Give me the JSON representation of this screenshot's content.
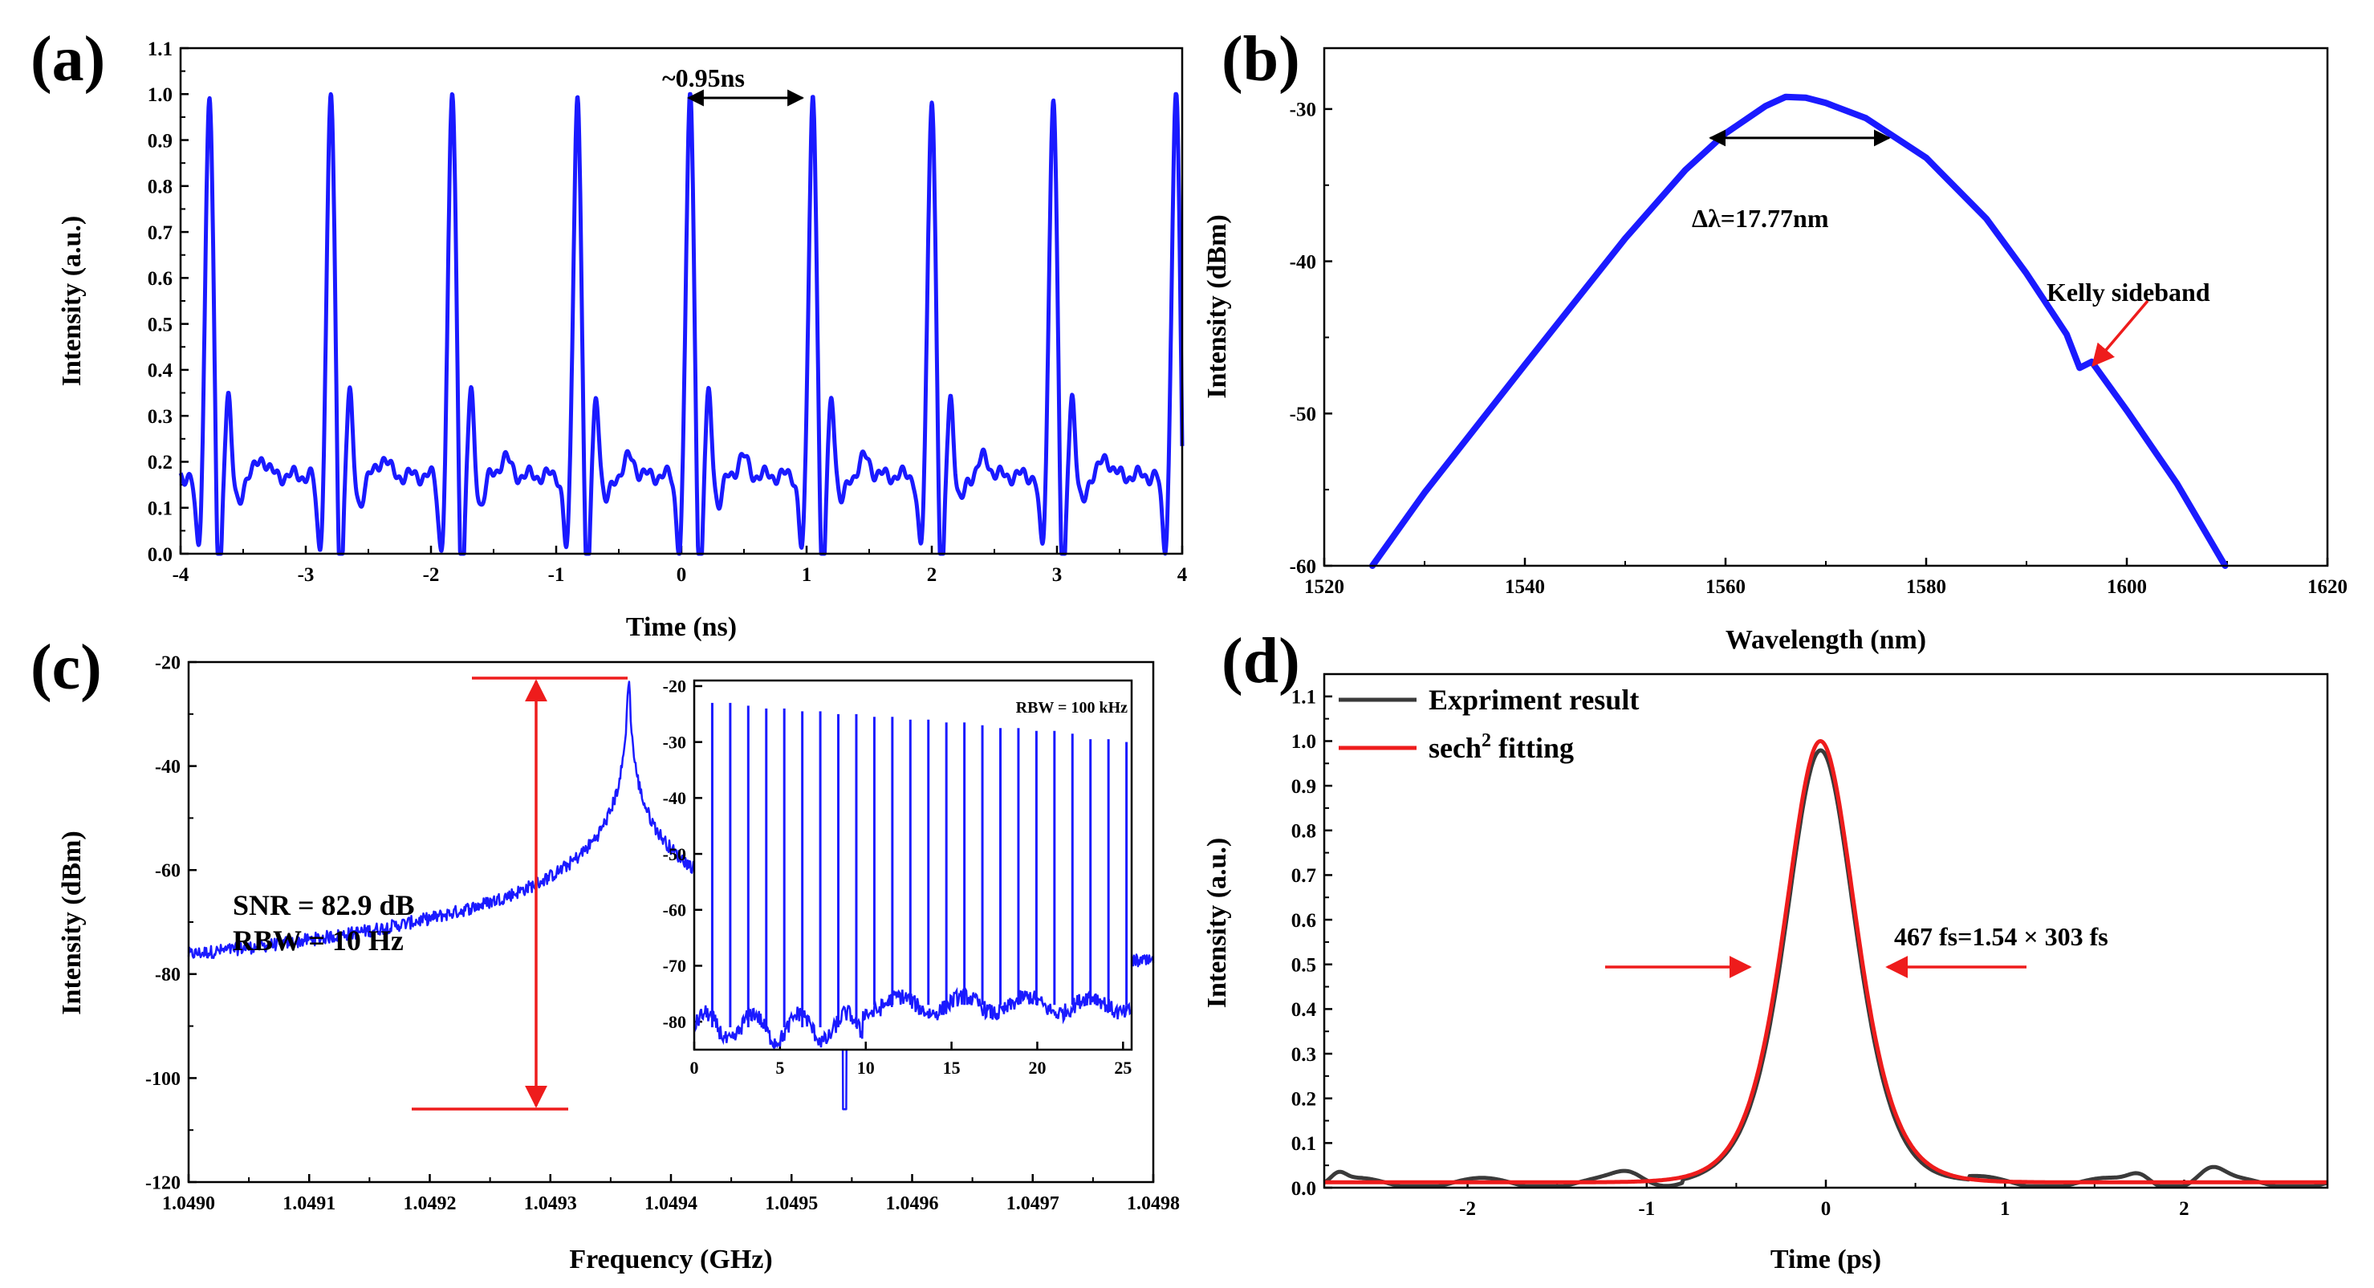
{
  "colors": {
    "blue": "#1a1aff",
    "red": "#ee1c1c",
    "gray": "#3a3a3a",
    "black": "#000000"
  },
  "chart_data": [
    {
      "panel": "(a)",
      "type": "line",
      "xlabel": "Time (ns)",
      "ylabel": "Intensity (a.u.)",
      "xlim": [
        -4,
        4
      ],
      "ylim": [
        0,
        1.1
      ],
      "xticks": [
        "-4",
        "-3",
        "-2",
        "-1",
        "0",
        "1",
        "2",
        "3",
        "4"
      ],
      "yticks": [
        "0.0",
        "0.1",
        "0.2",
        "0.3",
        "0.4",
        "0.5",
        "0.6",
        "0.7",
        "0.8",
        "0.9",
        "1.0",
        "1.1"
      ],
      "pulse_period_ns": 0.95,
      "pulse_peaks_ns": [
        -3.77,
        -2.8,
        -1.83,
        -0.83,
        0.07,
        1.05,
        2.0,
        2.97,
        3.95
      ],
      "annotation": "~0.95ns",
      "series": [
        {
          "name": "pulse train",
          "color": "#1a1aff",
          "peak": 1.0,
          "baseline": 0.18,
          "secondary_peak": 0.35,
          "dip": 0.0
        }
      ]
    },
    {
      "panel": "(b)",
      "type": "line",
      "xlabel": "Wavelength (nm)",
      "ylabel": "Intensity (dBm)",
      "xlim": [
        1520,
        1620
      ],
      "ylim": [
        -60,
        -26
      ],
      "xticks": [
        "1520",
        "1540",
        "1560",
        "1580",
        "1600",
        "1620"
      ],
      "yticks": [
        "-60",
        "-50",
        "-40",
        "-30"
      ],
      "x": [
        1524.8,
        1530,
        1540,
        1550,
        1556,
        1560,
        1564,
        1566,
        1568,
        1570,
        1574,
        1580,
        1586,
        1590,
        1594,
        1595.3,
        1596.5,
        1600,
        1605,
        1609.8
      ],
      "y": [
        -60,
        -55.2,
        -46.8,
        -38.5,
        -34.0,
        -31.6,
        -29.8,
        -29.2,
        -29.25,
        -29.6,
        -30.6,
        -33.2,
        -37.2,
        -40.8,
        -44.8,
        -47.0,
        -46.6,
        -49.8,
        -54.6,
        -60
      ],
      "fwhm_annotation": "Δλ=17.77nm",
      "fwhm_range_nm": [
        1558.5,
        1576.3
      ],
      "sideband_label": "Kelly sideband",
      "sideband_nm": 1595.3
    },
    {
      "panel": "(c)",
      "type": "line",
      "xlabel": "Frequency (GHz)",
      "ylabel": "Intensity (dBm)",
      "xlim": [
        1.049,
        1.0498
      ],
      "ylim": [
        -120,
        -20
      ],
      "xticks": [
        "1.0490",
        "1.0491",
        "1.0492",
        "1.0493",
        "1.0494",
        "1.0495",
        "1.0496",
        "1.0497",
        "1.0498"
      ],
      "yticks": [
        "-120",
        "-100",
        "-80",
        "-60",
        "-40",
        "-20"
      ],
      "peak_freq_ghz": 1.049365,
      "peak_dbm": -23,
      "noise_floor_dbm": -106,
      "side_bumps_ghz": [
        1.04913,
        1.04959
      ],
      "annotations": [
        "SNR = 82.9 dB",
        "RBW = 10 Hz"
      ],
      "inset": {
        "xlim": [
          0,
          25.5
        ],
        "ylim": [
          -85,
          -19
        ],
        "xticks": [
          "0",
          "5",
          "10",
          "15",
          "20",
          "25"
        ],
        "yticks": [
          "-80",
          "-70",
          "-60",
          "-50",
          "-40",
          "-30",
          "-20"
        ],
        "label": "RBW = 100 kHz",
        "harmonics_ghz": [
          1.05,
          2.1,
          3.15,
          4.2,
          5.25,
          6.3,
          7.35,
          8.4,
          9.45,
          10.5,
          11.55,
          12.6,
          13.65,
          14.7,
          15.75,
          16.8,
          17.85,
          18.9,
          19.95,
          21.0,
          22.05,
          23.1,
          24.15,
          25.2
        ],
        "harmonic_peaks_dbm": [
          -23,
          -23,
          -23.5,
          -24,
          -24,
          -24.5,
          -24.5,
          -25,
          -25,
          -25.5,
          -25.5,
          -26,
          -26,
          -26.5,
          -26.5,
          -27,
          -27.5,
          -27.5,
          -28,
          -28,
          -28.5,
          -29.5,
          -29.5,
          -30
        ],
        "floor_dbm": -80
      }
    },
    {
      "panel": "(d)",
      "type": "line",
      "xlabel": "Time (ps)",
      "ylabel": "Intensity (a.u.)",
      "xlim": [
        -2.8,
        2.8
      ],
      "ylim": [
        0,
        1.15
      ],
      "xticks": [
        "-2",
        "-1",
        "0",
        "1",
        "2"
      ],
      "yticks": [
        "0.0",
        "0.1",
        "0.2",
        "0.3",
        "0.4",
        "0.5",
        "0.6",
        "0.7",
        "0.8",
        "0.9",
        "1.0",
        "1.1"
      ],
      "series": [
        {
          "name": "Expriment result",
          "color": "#3a3a3a",
          "peak": 0.98,
          "center_ps": -0.03,
          "fwhm_ps": 0.467
        },
        {
          "name": "sech² fitting",
          "color": "#ee1c1c",
          "peak": 1.0,
          "center_ps": -0.03,
          "fwhm_ps": 0.467
        }
      ],
      "annotation": "467 fs=1.54 × 303 fs"
    }
  ],
  "panels": {
    "a": {
      "label": "(a)",
      "xlabel": "Time (ns)",
      "ylabel": "Intensity (a.u.)",
      "annotation": "~0.95ns"
    },
    "b": {
      "label": "(b)",
      "xlabel": "Wavelength (nm)",
      "ylabel": "Intensity (dBm)",
      "annotation": "Δλ=17.77nm",
      "sideband": "Kelly sideband"
    },
    "c": {
      "label": "(c)",
      "xlabel": "Frequency (GHz)",
      "ylabel": "Intensity (dBm)",
      "snr": "SNR = 82.9 dB",
      "rbw": "RBW = 10 Hz",
      "inset_rbw": "RBW = 100 kHz"
    },
    "d": {
      "label": "(d)",
      "xlabel": "Time (ps)",
      "ylabel": "Intensity (a.u.)",
      "legend1": "Expriment result",
      "legend2_prefix": "sech",
      "legend2_sup": "2",
      "legend2_suffix": " fitting",
      "annotation": "467 fs=1.54 × 303 fs"
    }
  }
}
